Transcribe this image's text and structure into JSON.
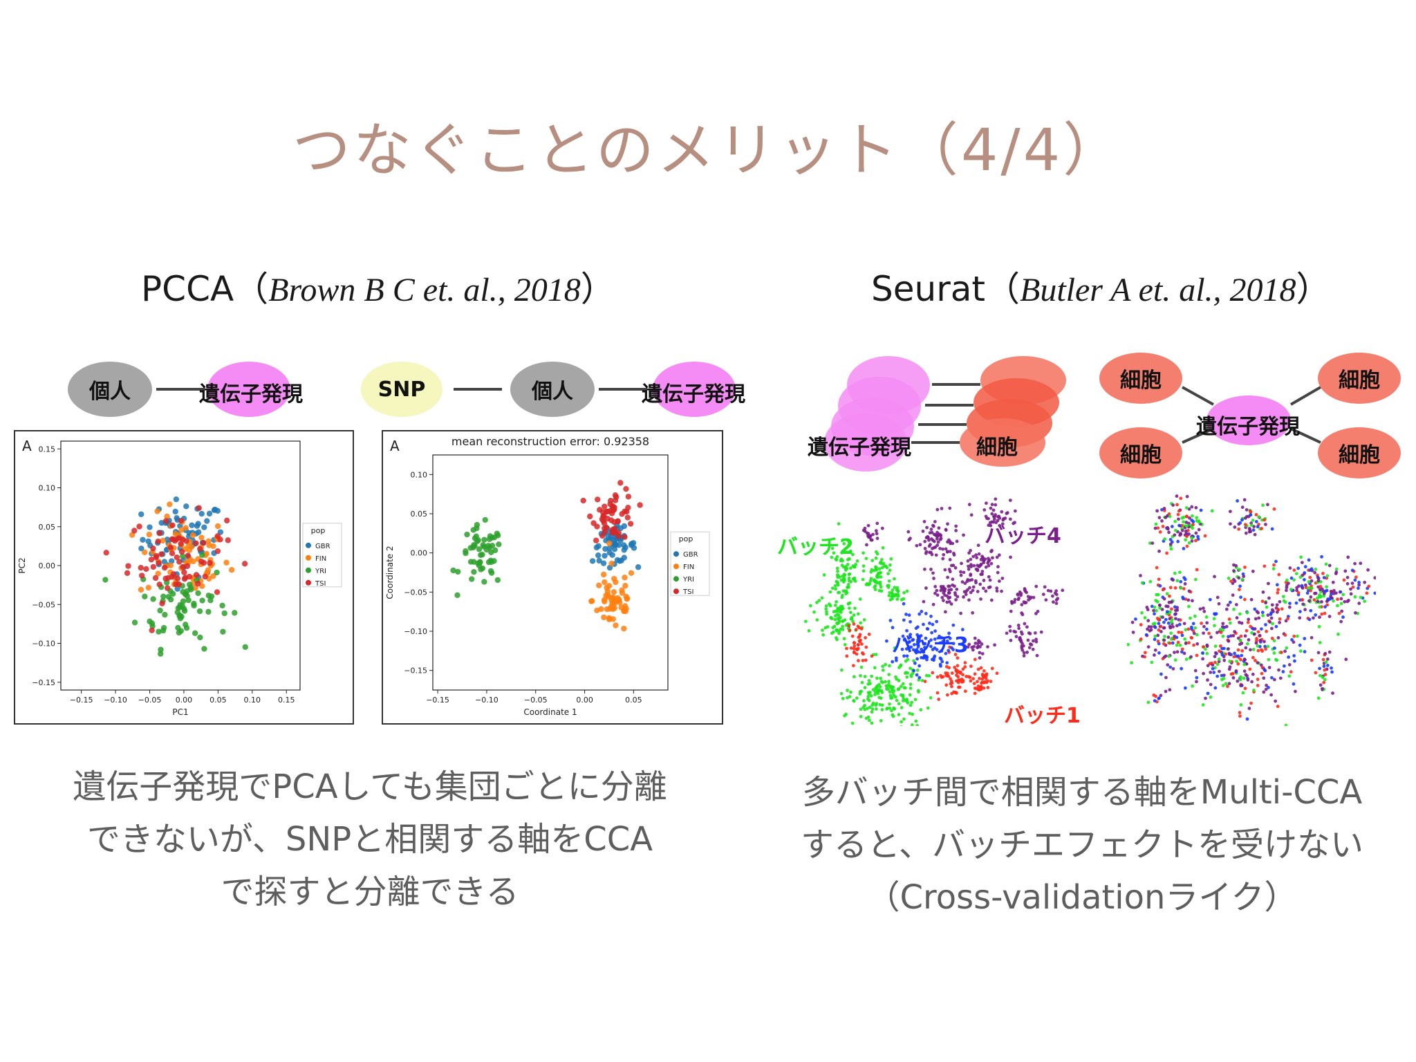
{
  "slide": {
    "title": "つなぐことのメリット（4/4）"
  },
  "left": {
    "heading": "PCCA（",
    "citation": "Brown B C et. al., 2018",
    "heading_close": "）",
    "diagram1": {
      "node_a": "個人",
      "node_b": "遺伝子発現"
    },
    "diagram2": {
      "node_a": "SNP",
      "node_b": "個人",
      "node_c": "遺伝子発現"
    },
    "caption_lines": [
      "遺伝子発現でPCAしても集団ごとに分離",
      "できないが、SNPと相関する軸をCCA",
      "で探すと分離できる"
    ]
  },
  "right": {
    "heading": "Seurat（",
    "citation": "Butler A et. al., 2018",
    "heading_close": "）",
    "diagram1": {
      "left_label": "遺伝子発現",
      "right_label": "細胞"
    },
    "diagram2": {
      "center": "遺伝子発現",
      "cell": "細胞"
    },
    "batch_labels": {
      "b1": "バッチ1",
      "b2": "バッチ2",
      "b3": "バッチ3",
      "b4": "バッチ4"
    },
    "caption_lines": [
      "多バッチ間で相関する軸をMulti-CCA",
      "すると、バッチエフェクトを受けない",
      "（Cross-validationライク）"
    ]
  },
  "colors": {
    "GBR": "#1f77b4",
    "FIN": "#ff7f0e",
    "YRI": "#2ca02c",
    "TSI": "#d62728",
    "batch1": "#ff2a1a",
    "batch2": "#1ee61e",
    "batch3": "#1a3cff",
    "batch4": "#7a1f8c"
  },
  "chart_data": [
    {
      "type": "scatter",
      "panel_letter": "A",
      "xlabel": "PC1",
      "ylabel": "PC2",
      "xlim": [
        -0.18,
        0.17
      ],
      "ylim": [
        -0.16,
        0.16
      ],
      "xticks": [
        "−0.15",
        "−0.10",
        "−0.05",
        "0.00",
        "0.05",
        "0.10",
        "0.15"
      ],
      "yticks": [
        "0.15",
        "0.10",
        "0.05",
        "0.00",
        "−0.05",
        "−0.10",
        "−0.15"
      ],
      "legend": {
        "title": "pop",
        "entries": [
          "GBR",
          "FIN",
          "YRI",
          "TSI"
        ],
        "placement": "right"
      },
      "series": [
        {
          "name": "GBR",
          "center": [
            0.0,
            0.035
          ],
          "spread": [
            0.055,
            0.045
          ]
        },
        {
          "name": "FIN",
          "center": [
            0.0,
            0.01
          ],
          "spread": [
            0.06,
            0.05
          ]
        },
        {
          "name": "YRI",
          "center": [
            0.0,
            -0.05
          ],
          "spread": [
            0.06,
            0.05
          ]
        },
        {
          "name": "TSI",
          "center": [
            -0.01,
            0.01
          ],
          "spread": [
            0.065,
            0.05
          ]
        }
      ]
    },
    {
      "type": "scatter",
      "panel_letter": "A",
      "title": "mean reconstruction error: 0.92358",
      "xlabel": "Coordinate 1",
      "ylabel": "Coordinate 2",
      "xlim": [
        -0.155,
        0.085
      ],
      "ylim": [
        -0.175,
        0.125
      ],
      "xticks": [
        "−0.15",
        "−0.10",
        "−0.05",
        "0.00",
        "0.05"
      ],
      "yticks": [
        "0.10",
        "0.05",
        "0.00",
        "−0.05",
        "−0.10",
        "−0.15"
      ],
      "legend": {
        "title": "pop",
        "entries": [
          "GBR",
          "FIN",
          "YRI",
          "TSI"
        ],
        "placement": "right"
      },
      "series": [
        {
          "name": "GBR",
          "center": [
            0.03,
            0.01
          ],
          "spread": [
            0.02,
            0.02
          ]
        },
        {
          "name": "FIN",
          "center": [
            0.03,
            -0.06
          ],
          "spread": [
            0.02,
            0.04
          ]
        },
        {
          "name": "YRI",
          "center": [
            -0.105,
            -0.005
          ],
          "spread": [
            0.02,
            0.035
          ]
        },
        {
          "name": "TSI",
          "center": [
            0.03,
            0.05
          ],
          "spread": [
            0.02,
            0.03
          ]
        }
      ]
    }
  ]
}
